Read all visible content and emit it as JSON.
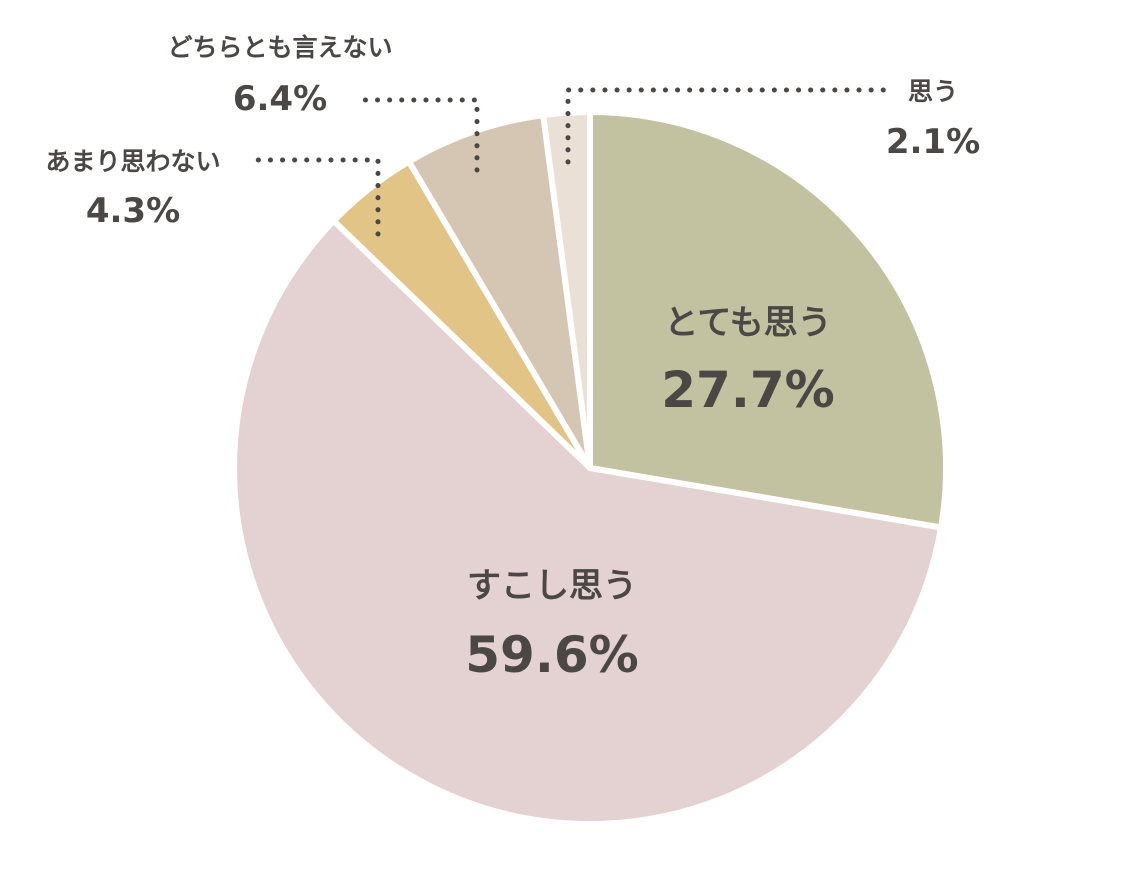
{
  "chart_data": {
    "type": "pie",
    "start_angle_deg": 0,
    "direction": "clockwise",
    "slices": [
      {
        "label": "とても思う",
        "value": 27.7,
        "value_label": "27.7%",
        "color": "#c2c1a0"
      },
      {
        "label": "すこし思う",
        "value": 59.6,
        "value_label": "59.6%",
        "color": "#e4d2d2"
      },
      {
        "label": "あまり思わない",
        "value": 4.3,
        "value_label": "4.3%",
        "color": "#e2c586"
      },
      {
        "label": "どちらとも言えない",
        "value": 6.4,
        "value_label": "6.4%",
        "color": "#d5c6b4"
      },
      {
        "label": "思う",
        "value": 2.1,
        "value_label": "2.1%",
        "color": "#ebe0d6"
      }
    ]
  }
}
